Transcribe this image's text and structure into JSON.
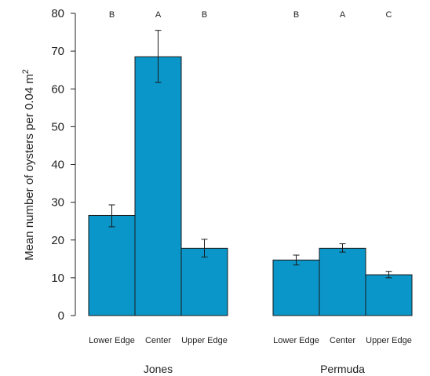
{
  "chart_data": {
    "type": "bar",
    "ylabel": "Mean number of oysters per 0.04 m",
    "ylabel_superscript": "2",
    "ylim": [
      0,
      80
    ],
    "yticks": [
      0,
      10,
      20,
      30,
      40,
      50,
      60,
      70,
      80
    ],
    "bar_color": "#0a96c8",
    "groups": [
      {
        "name": "Jones",
        "bars": [
          {
            "category": "Lower Edge",
            "value": 26.5,
            "err_low": 23.5,
            "err_high": 29.3,
            "letter": "B"
          },
          {
            "category": "Center",
            "value": 68.5,
            "err_low": 61.7,
            "err_high": 75.5,
            "letter": "A"
          },
          {
            "category": "Upper Edge",
            "value": 17.8,
            "err_low": 15.5,
            "err_high": 20.2,
            "letter": "B"
          }
        ]
      },
      {
        "name": "Permuda",
        "bars": [
          {
            "category": "Lower Edge",
            "value": 14.7,
            "err_low": 13.4,
            "err_high": 16.0,
            "letter": "B"
          },
          {
            "category": "Center",
            "value": 17.8,
            "err_low": 16.8,
            "err_high": 19.0,
            "letter": "A"
          },
          {
            "category": "Upper Edge",
            "value": 10.8,
            "err_low": 10.0,
            "err_high": 11.7,
            "letter": "C"
          }
        ]
      }
    ]
  }
}
